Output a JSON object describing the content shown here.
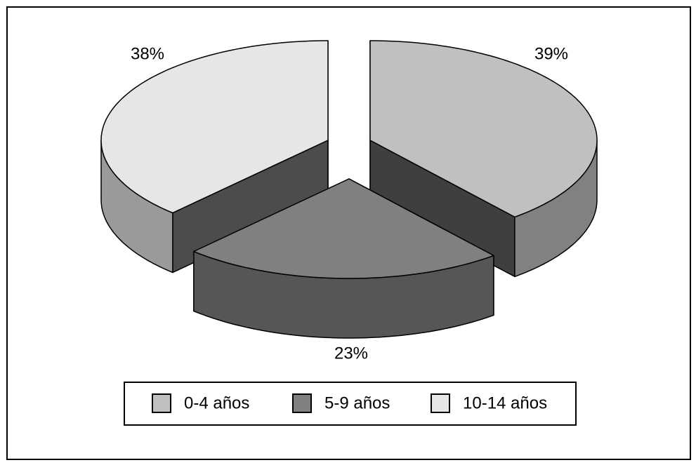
{
  "chart_data": {
    "type": "pie",
    "categories": [
      "0-4 años",
      "5-9 años",
      "10-14 años"
    ],
    "values": [
      39,
      23,
      38
    ],
    "value_labels": [
      "39%",
      "23%",
      "38%"
    ],
    "colors": [
      "#c0c0c0",
      "#808080",
      "#e6e6e6"
    ],
    "legend": "bottom"
  }
}
